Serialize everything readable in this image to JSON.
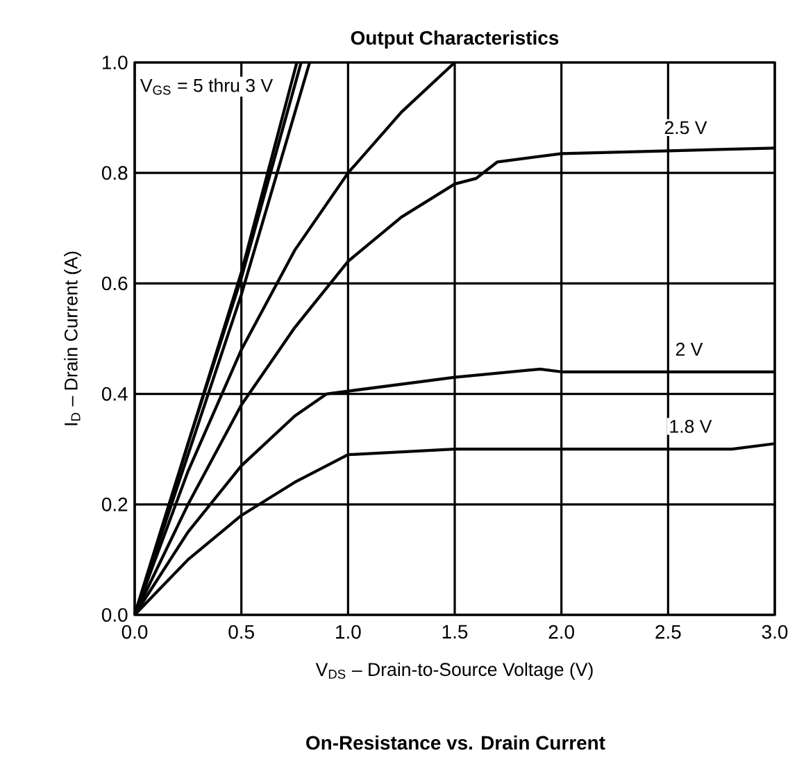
{
  "chart_data": {
    "type": "line",
    "title": "Output Characteristics",
    "xlabel": "V$_{DS}$ – Drain-to-Source Voltage (V)",
    "ylabel": "I$_{D}$ – Drain Current (A)",
    "series": [
      {
        "color": "#000000",
        "x": [
          0,
          0.25,
          0.5,
          0.76
        ],
        "values": [
          0,
          0.31,
          0.62,
          1.0
        ]
      },
      {
        "color": "#010101",
        "x": [
          0,
          0.25,
          0.5,
          0.78
        ],
        "values": [
          0,
          0.31,
          0.61,
          1.0
        ]
      },
      {
        "color": "#020202",
        "x": [
          0,
          0.25,
          0.5,
          0.82
        ],
        "values": [
          0,
          0.29,
          0.58,
          1.0
        ]
      },
      {
        "color": "#030303",
        "x": [
          0,
          0.25,
          0.5,
          0.75,
          1.0,
          1.25,
          1.5
        ],
        "values": [
          0,
          0.26,
          0.48,
          0.66,
          0.8,
          0.91,
          1.0
        ]
      },
      {
        "name": "2.5 V",
        "color": "#040404",
        "x": [
          0,
          0.25,
          0.5,
          0.75,
          1.0,
          1.25,
          1.5,
          1.6,
          1.7,
          2.0,
          2.5,
          3.0
        ],
        "values": [
          0,
          0.2,
          0.38,
          0.52,
          0.64,
          0.72,
          0.78,
          0.79,
          0.82,
          0.835,
          0.84,
          0.845
        ]
      },
      {
        "name": "2 V",
        "color": "#050505",
        "x": [
          0,
          0.25,
          0.5,
          0.75,
          0.9,
          1.0,
          1.5,
          1.9,
          2.0,
          3.0
        ],
        "values": [
          0,
          0.15,
          0.27,
          0.36,
          0.4,
          0.405,
          0.43,
          0.445,
          0.44,
          0.44
        ]
      },
      {
        "name": "1.8 V",
        "color": "#060606",
        "x": [
          0,
          0.25,
          0.5,
          0.75,
          1.0,
          1.5,
          2.0,
          2.8,
          3.0
        ],
        "values": [
          0,
          0.1,
          0.18,
          0.24,
          0.29,
          0.3,
          0.3,
          0.3,
          0.31
        ]
      }
    ],
    "xlim": [
      0,
      3
    ],
    "ylim": [
      0,
      1
    ],
    "xticks": [
      {
        "value": 0,
        "label": "0.0"
      },
      {
        "value": 0.5,
        "label": "0.5"
      },
      {
        "value": 1,
        "label": "1.0"
      },
      {
        "value": 1.5,
        "label": "1.5"
      },
      {
        "value": 2,
        "label": "2.0"
      },
      {
        "value": 2.5,
        "label": "2.5"
      },
      {
        "value": 3,
        "label": "3.0"
      }
    ],
    "yticks": [
      {
        "value": 0,
        "label": "0.0"
      },
      {
        "value": 0.2,
        "label": "0.2"
      },
      {
        "value": 0.4,
        "label": "0.4"
      },
      {
        "value": 0.6,
        "label": "0.6"
      },
      {
        "value": 0.8,
        "label": "0.8"
      },
      {
        "value": 1,
        "label": "1.0"
      }
    ],
    "grid": true,
    "marker": "none",
    "line_style": "solid",
    "annotations": [
      "V$_{GS}$ = 5 thru 3 V",
      "On-Resistance vs. Drain Current"
    ]
  }
}
